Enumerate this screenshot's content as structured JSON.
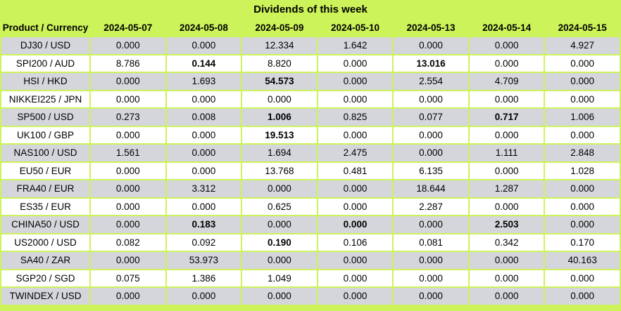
{
  "title": "Dividends of this week",
  "colors": {
    "background_green": "#CDF35A",
    "row_gray": "#D5D6DC",
    "row_white": "#FFFFFF",
    "text": "#000000"
  },
  "chart_data": {
    "type": "table",
    "title": "Dividends of this week",
    "columns": [
      "Product / Currency",
      "2024-05-07",
      "2024-05-08",
      "2024-05-09",
      "2024-05-10",
      "2024-05-13",
      "2024-05-14",
      "2024-05-15"
    ],
    "rows": [
      {
        "product": "DJ30 / USD",
        "values": [
          "0.000",
          "0.000",
          "12.334",
          "1.642",
          "0.000",
          "0.000",
          "4.927"
        ],
        "bold": []
      },
      {
        "product": "SPI200 / AUD",
        "values": [
          "8.786",
          "0.144",
          "8.820",
          "0.000",
          "13.016",
          "0.000",
          "0.000"
        ],
        "bold": [
          1,
          4
        ]
      },
      {
        "product": "HSI / HKD",
        "values": [
          "0.000",
          "1.693",
          "54.573",
          "0.000",
          "2.554",
          "4.709",
          "0.000"
        ],
        "bold": [
          2
        ]
      },
      {
        "product": "NIKKEI225 / JPN",
        "values": [
          "0.000",
          "0.000",
          "0.000",
          "0.000",
          "0.000",
          "0.000",
          "0.000"
        ],
        "bold": []
      },
      {
        "product": "SP500 / USD",
        "values": [
          "0.273",
          "0.008",
          "1.006",
          "0.825",
          "0.077",
          "0.717",
          "1.006"
        ],
        "bold": [
          2,
          5
        ]
      },
      {
        "product": "UK100 / GBP",
        "values": [
          "0.000",
          "0.000",
          "19.513",
          "0.000",
          "0.000",
          "0.000",
          "0.000"
        ],
        "bold": [
          2
        ]
      },
      {
        "product": "NAS100 / USD",
        "values": [
          "1.561",
          "0.000",
          "1.694",
          "2.475",
          "0.000",
          "1.111",
          "2.848"
        ],
        "bold": []
      },
      {
        "product": "EU50 / EUR",
        "values": [
          "0.000",
          "0.000",
          "13.768",
          "0.481",
          "6.135",
          "0.000",
          "1.028"
        ],
        "bold": []
      },
      {
        "product": "FRA40 / EUR",
        "values": [
          "0.000",
          "3.312",
          "0.000",
          "0.000",
          "18.644",
          "1.287",
          "0.000"
        ],
        "bold": []
      },
      {
        "product": "ES35 / EUR",
        "values": [
          "0.000",
          "0.000",
          "0.625",
          "0.000",
          "2.287",
          "0.000",
          "0.000"
        ],
        "bold": []
      },
      {
        "product": "CHINA50 / USD",
        "values": [
          "0.000",
          "0.183",
          "0.000",
          "0.000",
          "0.000",
          "2.503",
          "0.000"
        ],
        "bold": [
          1,
          3,
          5
        ]
      },
      {
        "product": "US2000 / USD",
        "values": [
          "0.082",
          "0.092",
          "0.190",
          "0.106",
          "0.081",
          "0.342",
          "0.170"
        ],
        "bold": [
          2
        ]
      },
      {
        "product": "SA40 / ZAR",
        "values": [
          "0.000",
          "53.973",
          "0.000",
          "0.000",
          "0.000",
          "0.000",
          "40.163"
        ],
        "bold": []
      },
      {
        "product": "SGP20 / SGD",
        "values": [
          "0.075",
          "1.386",
          "1.049",
          "0.000",
          "0.000",
          "0.000",
          "0.000"
        ],
        "bold": []
      },
      {
        "product": "TWINDEX / USD",
        "values": [
          "0.000",
          "0.000",
          "0.000",
          "0.000",
          "0.000",
          "0.000",
          "0.000"
        ],
        "bold": []
      }
    ]
  }
}
